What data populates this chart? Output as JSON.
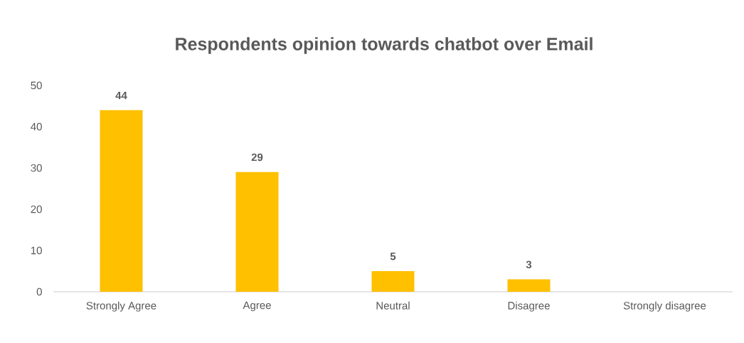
{
  "chart_data": {
    "type": "bar",
    "title": "Respondents opinion towards chatbot over Email",
    "categories": [
      "Strongly Agree",
      "Agree",
      "Neutral",
      "Disagree",
      "Strongly disagree"
    ],
    "values": [
      44,
      29,
      5,
      3,
      0
    ],
    "value_labels": [
      "44",
      "29",
      "5",
      "3",
      null
    ],
    "color": "#ffc000",
    "ylim": [
      0,
      50
    ],
    "yticks": [
      0,
      10,
      20,
      30,
      40,
      50
    ],
    "grid": false
  }
}
